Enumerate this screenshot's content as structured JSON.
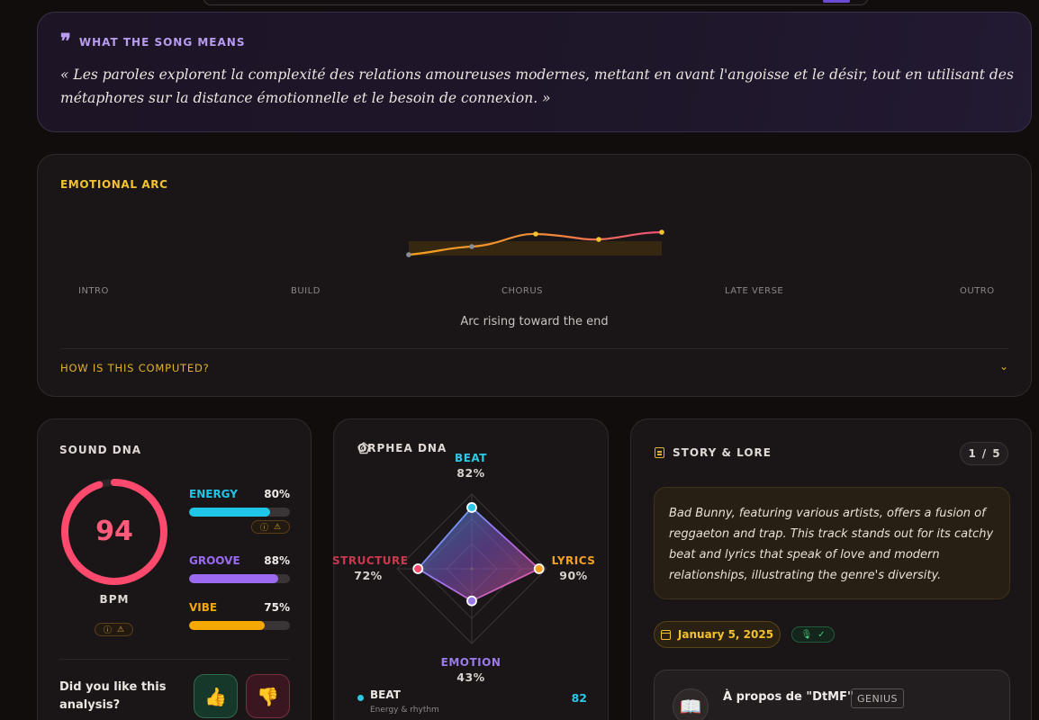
{
  "meaning": {
    "title": "WHAT THE SONG MEANS",
    "text": "« Les paroles explorent la complexité des relations amoureuses modernes, mettant en avant l'angoisse et le désir, tout en utilisant des métaphores sur la distance émotionnelle et le besoin de connexion. »",
    "accent": "#b89cf0"
  },
  "emotional_arc": {
    "title": "EMOTIONAL ARC",
    "stages": [
      "INTRO",
      "BUILD",
      "CHORUS",
      "LATE VERSE",
      "OUTRO"
    ],
    "summary": "Arc rising toward the end",
    "how_label": "HOW IS THIS COMPUTED?",
    "colors": {
      "start": "#f5a020",
      "end": "#ef4e7c",
      "points": [
        "#8a8f97",
        "#8a8f97",
        "#f2c230",
        "#f2c230",
        "#f2c230"
      ]
    }
  },
  "sound_dna": {
    "title": "SOUND DNA",
    "bpm_value": "94",
    "bpm_label": "BPM",
    "ring_level": 0.95,
    "ring_color": "#ff4a6e",
    "metrics": [
      {
        "name": "ENERGY",
        "percent": "80%",
        "level": 0.8,
        "color": "#1fc6e8"
      },
      {
        "name": "GROOVE",
        "percent": "88%",
        "level": 0.88,
        "color": "#9a6bf0"
      },
      {
        "name": "VIBE",
        "percent": "75%",
        "level": 0.75,
        "color": "#f5a800"
      }
    ],
    "feedback_question": "Did you like this analysis?",
    "icons": {
      "info": "info-icon",
      "warning": "warning-icon",
      "thumbs_up": "thumbs-up-icon",
      "thumbs_down": "thumbs-down-icon"
    }
  },
  "orphea_dna": {
    "title": "ORPHEA DNA",
    "axes": [
      {
        "name": "BEAT",
        "percent": "82%",
        "value": 82,
        "color": "#2ec8e6"
      },
      {
        "name": "LYRICS",
        "percent": "90%",
        "value": 90,
        "color": "#f5a020"
      },
      {
        "name": "EMOTION",
        "percent": "43%",
        "value": 43,
        "color": "#9a7be8"
      },
      {
        "name": "STRUCTURE",
        "percent": "72%",
        "value": 72,
        "color": "#ff4a6e"
      }
    ],
    "legend": [
      {
        "name": "BEAT",
        "description": "Energy & rhythm",
        "value": "82"
      }
    ]
  },
  "story": {
    "title": "STORY & LORE",
    "page_current": "1",
    "page_separator": "/",
    "page_total": "5",
    "lore_text": "Bad Bunny, featuring various artists, offers a fusion of reggaeton and trap. This track stands out for its catchy beat and lyrics that speak of love and modern relationships, illustrating the genre's diversity.",
    "date": "January 5, 2025",
    "genius_title": "À propos de \"DtMF\"",
    "genius_tag": "GENIUS",
    "genius_avatar": "📖"
  }
}
